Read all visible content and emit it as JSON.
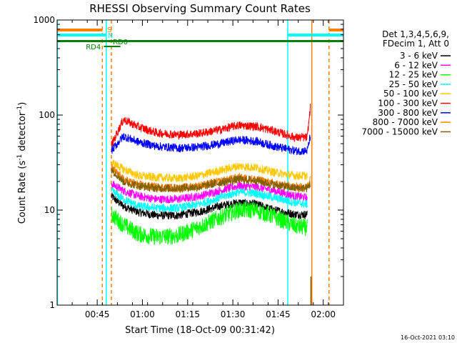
{
  "chart_data": {
    "type": "line",
    "title": "RHESSI Observing Summary Count Rates",
    "xlabel": "Start Time (18-Oct-09 00:31:42)",
    "ylabel_main": "Count Rate (s",
    "ylabel_sup1": "-1",
    "ylabel_mid": " detector",
    "ylabel_sup2": "-1",
    "ylabel_end": ")",
    "yscale": "log",
    "ylim": [
      1,
      1000
    ],
    "xlim_minutes": [
      0,
      95
    ],
    "xtick_labels": [
      "00:45",
      "01:00",
      "01:15",
      "01:30",
      "01:45",
      "02:00"
    ],
    "xtick_minutes": [
      13.3,
      28.3,
      43.3,
      58.3,
      73.3,
      88.3
    ],
    "ytick_labels": [
      "1",
      "10",
      "100",
      "1000"
    ],
    "ytick_values": [
      1,
      10,
      100,
      1000
    ],
    "legend_header": [
      "Det 1,3,4,5,6,9,",
      "FDecim 1, Att 0"
    ],
    "series": [
      {
        "name": "3 - 6 keV",
        "color": "#000000",
        "values": [
          [
            18,
            14
          ],
          [
            22,
            11
          ],
          [
            27,
            9.5
          ],
          [
            33,
            8.8
          ],
          [
            40,
            8.8
          ],
          [
            47,
            9.6
          ],
          [
            54,
            11
          ],
          [
            60,
            12
          ],
          [
            66,
            11.5
          ],
          [
            72,
            10
          ],
          [
            79,
            9
          ],
          [
            83,
            9
          ]
        ]
      },
      {
        "name": "6 - 12 keV",
        "color": "#ff00ff",
        "values": [
          [
            18,
            19
          ],
          [
            22,
            16
          ],
          [
            27,
            14
          ],
          [
            33,
            13
          ],
          [
            40,
            13
          ],
          [
            47,
            14
          ],
          [
            54,
            16
          ],
          [
            60,
            18
          ],
          [
            66,
            17.5
          ],
          [
            72,
            16
          ],
          [
            79,
            14
          ],
          [
            83,
            13.5
          ]
        ]
      },
      {
        "name": "12 - 25 keV",
        "color": "#00ff00",
        "values": [
          [
            18,
            9
          ],
          [
            22,
            7
          ],
          [
            27,
            5.6
          ],
          [
            33,
            5.2
          ],
          [
            40,
            5.4
          ],
          [
            47,
            6.6
          ],
          [
            54,
            8.4
          ],
          [
            60,
            10
          ],
          [
            66,
            10
          ],
          [
            72,
            8.5
          ],
          [
            79,
            6.8
          ],
          [
            83,
            6.5
          ]
        ]
      },
      {
        "name": "25 - 50 keV",
        "color": "#00ffff",
        "values": [
          [
            18,
            16
          ],
          [
            22,
            13
          ],
          [
            27,
            11
          ],
          [
            33,
            10.5
          ],
          [
            40,
            10.5
          ],
          [
            47,
            11.5
          ],
          [
            54,
            13.5
          ],
          [
            60,
            15.5
          ],
          [
            66,
            15
          ],
          [
            72,
            13.5
          ],
          [
            79,
            12
          ],
          [
            83,
            11.5
          ]
        ]
      },
      {
        "name": "50 - 100 keV",
        "color": "#ffc800",
        "values": [
          [
            18,
            32
          ],
          [
            22,
            27
          ],
          [
            27,
            23
          ],
          [
            33,
            22
          ],
          [
            40,
            21.5
          ],
          [
            47,
            23
          ],
          [
            54,
            26
          ],
          [
            60,
            29
          ],
          [
            66,
            28
          ],
          [
            72,
            25
          ],
          [
            79,
            23
          ],
          [
            83,
            23
          ]
        ]
      },
      {
        "name": "100 - 300 keV",
        "color": "#ff0000",
        "values": [
          [
            18,
            48
          ],
          [
            22,
            90
          ],
          [
            27,
            75
          ],
          [
            33,
            65
          ],
          [
            40,
            62
          ],
          [
            47,
            64
          ],
          [
            54,
            70
          ],
          [
            60,
            78
          ],
          [
            66,
            76
          ],
          [
            72,
            68
          ],
          [
            79,
            58
          ],
          [
            83,
            58
          ],
          [
            84,
            120
          ]
        ]
      },
      {
        "name": "300 - 800 keV",
        "color": "#0000ff",
        "values": [
          [
            18,
            42
          ],
          [
            22,
            60
          ],
          [
            27,
            52
          ],
          [
            33,
            47
          ],
          [
            40,
            45
          ],
          [
            47,
            46
          ],
          [
            54,
            50
          ],
          [
            60,
            55
          ],
          [
            66,
            53
          ],
          [
            72,
            47
          ],
          [
            79,
            42
          ],
          [
            83,
            42
          ],
          [
            84,
            60
          ]
        ]
      },
      {
        "name": "800 - 7000 keV",
        "color": "#ff8000",
        "values": [
          [
            18,
            28
          ],
          [
            22,
            21
          ],
          [
            27,
            18.5
          ],
          [
            33,
            17.5
          ],
          [
            40,
            17
          ],
          [
            47,
            18
          ],
          [
            54,
            20
          ],
          [
            60,
            22
          ],
          [
            66,
            21
          ],
          [
            72,
            19
          ],
          [
            79,
            17.5
          ],
          [
            83,
            17.5
          ],
          [
            84,
            22
          ]
        ]
      },
      {
        "name": "7000 - 15000 keV",
        "color": "#806000",
        "values": [
          [
            18,
            27
          ],
          [
            22,
            20
          ],
          [
            27,
            18
          ],
          [
            33,
            17
          ],
          [
            40,
            17
          ],
          [
            47,
            17.5
          ],
          [
            54,
            19.5
          ],
          [
            60,
            21
          ],
          [
            66,
            20.5
          ],
          [
            72,
            18.5
          ],
          [
            79,
            17
          ],
          [
            83,
            17
          ],
          [
            84,
            19
          ]
        ]
      }
    ],
    "annotations": {
      "flag_s_label": "S",
      "flag_n_label": "N",
      "flag_rd0_label": "RD0",
      "flag_rd4_label": "RD4"
    },
    "grid": false,
    "legend_position": "right"
  },
  "footer": {
    "timestamp": "16-Oct-2021 03:10"
  },
  "colors": {
    "axis": "#000000",
    "cyan_marker": "#00ffff",
    "orange_marker": "#ff8000",
    "green_flag": "#008000"
  }
}
